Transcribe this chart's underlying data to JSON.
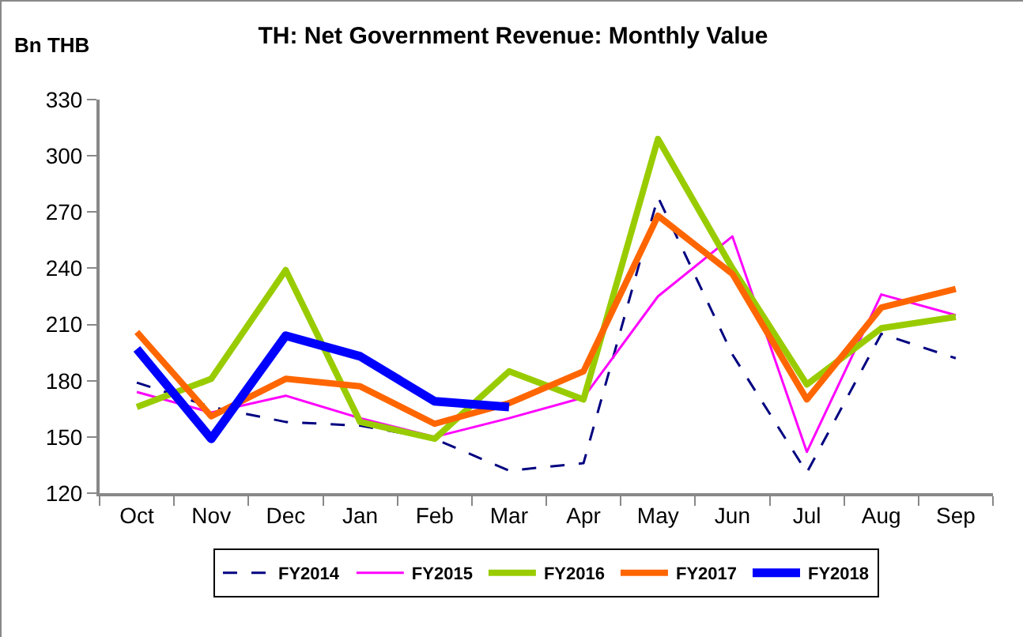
{
  "chart_data": {
    "type": "line",
    "title": "TH: Net Government Revenue: Monthly Value",
    "ylabel": "Bn THB",
    "categories": [
      "Oct",
      "Nov",
      "Dec",
      "Jan",
      "Feb",
      "Mar",
      "Apr",
      "May",
      "Jun",
      "Jul",
      "Aug",
      "Sep"
    ],
    "series": [
      {
        "name": "FY2014",
        "color": "#000080",
        "line_style": "dashed",
        "values": [
          179,
          166,
          158,
          156,
          149,
          132,
          136,
          278,
          194,
          131,
          205,
          192
        ]
      },
      {
        "name": "FY2015",
        "color": "#ff00ff",
        "values": [
          174,
          163,
          172,
          160,
          150,
          160,
          171,
          225,
          257,
          142,
          226,
          215
        ]
      },
      {
        "name": "FY2016",
        "color": "#99cc00",
        "values": [
          166,
          181,
          239,
          158,
          149,
          185,
          170,
          309,
          240,
          178,
          208,
          214
        ]
      },
      {
        "name": "FY2017",
        "color": "#ff6600",
        "values": [
          206,
          161,
          181,
          177,
          157,
          168,
          185,
          268,
          237,
          170,
          219,
          229
        ]
      },
      {
        "name": "FY2018",
        "color": "#0000ff",
        "values": [
          197,
          149,
          204,
          193,
          169,
          166,
          null,
          null,
          null,
          null,
          null,
          null
        ]
      }
    ],
    "ylim": [
      120,
      330
    ],
    "yticks": [
      120,
      150,
      180,
      210,
      240,
      270,
      300,
      330
    ],
    "grid": false,
    "legend": "bottom",
    "line_style": "solid",
    "marker": "none"
  }
}
